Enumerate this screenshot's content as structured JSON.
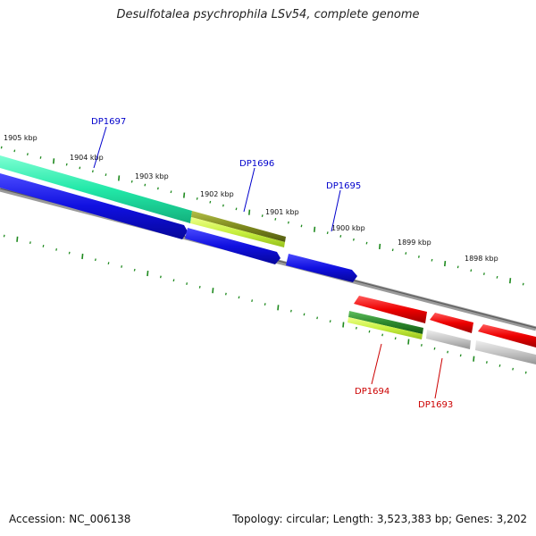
{
  "title": "Desulfotalea psychrophila LSv54, complete genome",
  "footer": {
    "accession": "Accession: NC_006138",
    "info": "Topology: circular; Length: 3,523,383 bp; Genes: 3,202"
  },
  "scale": {
    "unit": "kbp",
    "labels": [
      "1905 kbp",
      "1904 kbp",
      "1903 kbp",
      "1902 kbp",
      "1901 kbp",
      "1900 kbp",
      "1899 kbp",
      "1898 kbp"
    ]
  },
  "gene_labels": [
    {
      "id": "DP1697",
      "color": "#0000cc"
    },
    {
      "id": "DP1696",
      "color": "#0000cc"
    },
    {
      "id": "DP1695",
      "color": "#0000cc"
    },
    {
      "id": "DP1694",
      "color": "#cc0000"
    },
    {
      "id": "DP1693",
      "color": "#cc0000"
    }
  ],
  "colors": {
    "forward_gene": "#1010e0",
    "reverse_gene": "#e00000",
    "cog_teal": "#22e8a8",
    "cog_olive": "#7f8a1e",
    "cog_lime": "#c8f040",
    "cog_darkgreen": "#2e8a2e",
    "cog_gray": "#c0c0c0",
    "tick": "#1f8a1f",
    "backbone": "#808080"
  }
}
